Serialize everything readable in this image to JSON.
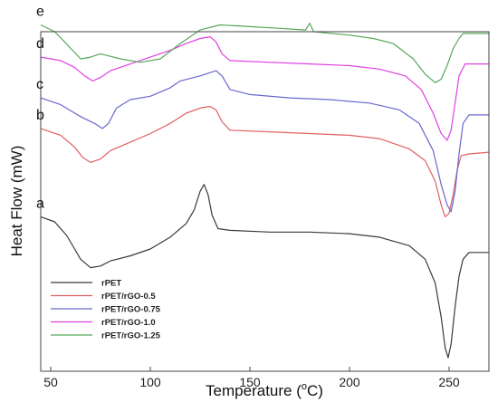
{
  "chart_data": {
    "type": "line",
    "title": "",
    "xlabel": "Temperature (°C)",
    "xlabel_parts": {
      "main": "Temperature (",
      "sup": "o",
      "unit": "C)"
    },
    "ylabel": "Heat Flow (mW)",
    "xlim": [
      45,
      270
    ],
    "ylim": [
      0,
      10
    ],
    "xticks": [
      50,
      100,
      150,
      200,
      250
    ],
    "y_tick_labels_shown": false,
    "grid": false,
    "legend_position": "bottom-left",
    "series": [
      {
        "name": "rPET",
        "tag": "a",
        "color": "#3a3a3a",
        "points": [
          [
            45,
            4.55
          ],
          [
            52,
            4.4
          ],
          [
            58,
            4.0
          ],
          [
            62,
            3.6
          ],
          [
            65,
            3.3
          ],
          [
            70,
            3.05
          ],
          [
            75,
            3.1
          ],
          [
            80,
            3.25
          ],
          [
            90,
            3.4
          ],
          [
            100,
            3.6
          ],
          [
            110,
            3.95
          ],
          [
            118,
            4.35
          ],
          [
            122,
            4.75
          ],
          [
            125,
            5.3
          ],
          [
            127,
            5.5
          ],
          [
            129,
            5.2
          ],
          [
            131,
            4.6
          ],
          [
            134,
            4.2
          ],
          [
            140,
            4.15
          ],
          [
            160,
            4.1
          ],
          [
            180,
            4.1
          ],
          [
            200,
            4.05
          ],
          [
            215,
            3.95
          ],
          [
            230,
            3.7
          ],
          [
            238,
            3.3
          ],
          [
            243,
            2.6
          ],
          [
            246,
            1.6
          ],
          [
            248,
            0.7
          ],
          [
            249.5,
            0.4
          ],
          [
            251,
            0.8
          ],
          [
            253,
            1.9
          ],
          [
            255,
            2.8
          ],
          [
            257,
            3.3
          ],
          [
            260,
            3.5
          ],
          [
            270,
            3.5
          ]
        ]
      },
      {
        "name": "rPET/rGO-0.5",
        "tag": "b",
        "color": "#e06060",
        "points": [
          [
            45,
            7.15
          ],
          [
            55,
            6.95
          ],
          [
            62,
            6.6
          ],
          [
            66,
            6.3
          ],
          [
            70,
            6.15
          ],
          [
            75,
            6.25
          ],
          [
            80,
            6.5
          ],
          [
            90,
            6.75
          ],
          [
            100,
            7.0
          ],
          [
            110,
            7.3
          ],
          [
            118,
            7.6
          ],
          [
            125,
            7.75
          ],
          [
            130,
            7.8
          ],
          [
            133,
            7.7
          ],
          [
            136,
            7.35
          ],
          [
            140,
            7.1
          ],
          [
            160,
            7.05
          ],
          [
            180,
            7.0
          ],
          [
            200,
            6.95
          ],
          [
            215,
            6.85
          ],
          [
            230,
            6.55
          ],
          [
            238,
            6.2
          ],
          [
            243,
            5.6
          ],
          [
            246,
            4.9
          ],
          [
            248,
            4.55
          ],
          [
            250,
            4.65
          ],
          [
            252,
            5.2
          ],
          [
            254,
            5.9
          ],
          [
            256,
            6.35
          ],
          [
            260,
            6.4
          ],
          [
            270,
            6.45
          ]
        ]
      },
      {
        "name": "rPET/rGO-0.75",
        "tag": "c",
        "color": "#6868d0",
        "points": [
          [
            45,
            8.05
          ],
          [
            55,
            7.85
          ],
          [
            65,
            7.5
          ],
          [
            72,
            7.3
          ],
          [
            76,
            7.15
          ],
          [
            79,
            7.3
          ],
          [
            83,
            7.75
          ],
          [
            90,
            8.0
          ],
          [
            100,
            8.1
          ],
          [
            110,
            8.35
          ],
          [
            115,
            8.55
          ],
          [
            125,
            8.7
          ],
          [
            133,
            8.85
          ],
          [
            136,
            8.7
          ],
          [
            140,
            8.3
          ],
          [
            150,
            8.15
          ],
          [
            170,
            8.05
          ],
          [
            190,
            8.0
          ],
          [
            210,
            7.9
          ],
          [
            225,
            7.7
          ],
          [
            235,
            7.3
          ],
          [
            242,
            6.5
          ],
          [
            246,
            5.5
          ],
          [
            249,
            4.9
          ],
          [
            251,
            4.7
          ],
          [
            253,
            5.3
          ],
          [
            255,
            6.4
          ],
          [
            257,
            7.3
          ],
          [
            260,
            7.55
          ],
          [
            270,
            7.55
          ]
        ]
      },
      {
        "name": "rPET/rGO-1.0",
        "tag": "d",
        "color": "#e040e0",
        "points": [
          [
            45,
            9.25
          ],
          [
            55,
            9.15
          ],
          [
            62,
            8.95
          ],
          [
            67,
            8.7
          ],
          [
            71,
            8.55
          ],
          [
            75,
            8.65
          ],
          [
            80,
            8.85
          ],
          [
            90,
            9.05
          ],
          [
            100,
            9.25
          ],
          [
            110,
            9.45
          ],
          [
            118,
            9.65
          ],
          [
            125,
            9.8
          ],
          [
            130,
            9.85
          ],
          [
            133,
            9.7
          ],
          [
            136,
            9.35
          ],
          [
            140,
            9.15
          ],
          [
            160,
            9.1
          ],
          [
            180,
            9.05
          ],
          [
            200,
            9.0
          ],
          [
            215,
            8.9
          ],
          [
            228,
            8.7
          ],
          [
            236,
            8.3
          ],
          [
            242,
            7.6
          ],
          [
            246,
            7.0
          ],
          [
            249,
            6.8
          ],
          [
            251,
            7.1
          ],
          [
            253,
            7.9
          ],
          [
            255,
            8.7
          ],
          [
            258,
            9.05
          ],
          [
            262,
            9.05
          ],
          [
            270,
            9.05
          ]
        ]
      },
      {
        "name": "rPET/rGO-1.25",
        "tag": "e",
        "color": "#58a858",
        "points": [
          [
            45,
            10.2
          ],
          [
            52,
            10.0
          ],
          [
            57,
            9.7
          ],
          [
            61,
            9.45
          ],
          [
            65,
            9.2
          ],
          [
            70,
            9.25
          ],
          [
            75,
            9.35
          ],
          [
            85,
            9.2
          ],
          [
            95,
            9.1
          ],
          [
            105,
            9.2
          ],
          [
            115,
            9.65
          ],
          [
            125,
            10.05
          ],
          [
            135,
            10.2
          ],
          [
            150,
            10.15
          ],
          [
            165,
            10.1
          ],
          [
            178,
            10.05
          ],
          [
            180,
            10.25
          ],
          [
            182,
            10.0
          ],
          [
            200,
            9.9
          ],
          [
            212,
            9.8
          ],
          [
            222,
            9.65
          ],
          [
            232,
            9.2
          ],
          [
            238,
            8.75
          ],
          [
            243,
            8.5
          ],
          [
            246,
            8.6
          ],
          [
            249,
            9.0
          ],
          [
            252,
            9.5
          ],
          [
            255,
            9.8
          ],
          [
            257,
            9.95
          ],
          [
            262,
            9.95
          ],
          [
            270,
            9.95
          ]
        ]
      }
    ]
  }
}
